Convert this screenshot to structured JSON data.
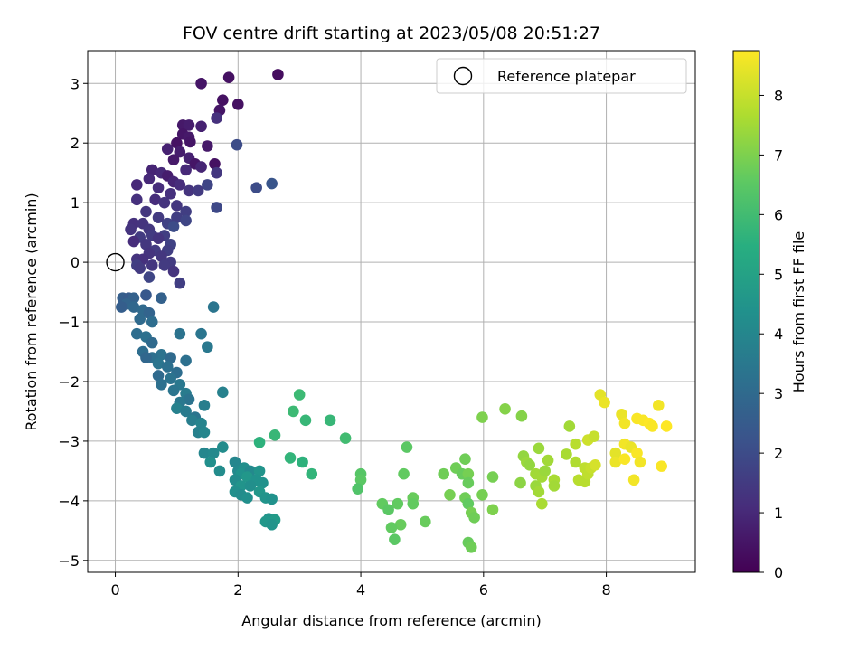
{
  "chart_data": {
    "type": "scatter",
    "title": "FOV centre drift starting at 2023/05/08 20:51:27",
    "xlabel": "Angular distance from reference (arcmin)",
    "ylabel": "Rotation from reference (arcmin)",
    "xlim": [
      -0.45,
      9.45
    ],
    "ylim": [
      -5.2,
      3.55
    ],
    "x_ticks": [
      0,
      2,
      4,
      6,
      8
    ],
    "y_ticks": [
      -5,
      -4,
      -3,
      -2,
      -1,
      0,
      1,
      2,
      3
    ],
    "grid": true,
    "legend": {
      "placement": "top-right",
      "entries": [
        "Reference platepar"
      ]
    },
    "reference_point": {
      "x": 0,
      "y": 0,
      "label": "Reference platepar"
    },
    "colormap": "viridis",
    "colorbar": {
      "label": "Hours from first FF file",
      "range": [
        0,
        8.75
      ],
      "ticks": [
        0,
        1,
        2,
        3,
        4,
        5,
        6,
        7,
        8
      ]
    },
    "series": [
      {
        "points": [
          [
            2.65,
            3.15,
            0.3
          ],
          [
            1.85,
            3.1,
            0.4
          ],
          [
            1.4,
            3.0,
            0.5
          ],
          [
            1.75,
            2.72,
            0.4
          ],
          [
            2.0,
            2.65,
            0.4
          ],
          [
            1.7,
            2.55,
            0.5
          ],
          [
            1.65,
            2.42,
            1.2
          ],
          [
            1.1,
            2.3,
            0.6
          ],
          [
            1.2,
            2.3,
            0.7
          ],
          [
            1.4,
            2.28,
            0.8
          ],
          [
            1.1,
            2.15,
            0.5
          ],
          [
            1.2,
            2.1,
            0.6
          ],
          [
            1.0,
            2.0,
            0.4
          ],
          [
            1.22,
            2.02,
            0.5
          ],
          [
            1.98,
            1.97,
            2.0
          ],
          [
            1.5,
            1.95,
            0.6
          ],
          [
            0.85,
            1.9,
            0.8
          ],
          [
            1.05,
            1.85,
            0.7
          ],
          [
            1.2,
            1.75,
            0.8
          ],
          [
            0.95,
            1.72,
            0.6
          ],
          [
            1.3,
            1.65,
            0.5
          ],
          [
            1.4,
            1.6,
            0.9
          ],
          [
            1.62,
            1.65,
            0.4
          ],
          [
            1.15,
            1.55,
            1.0
          ],
          [
            0.6,
            1.55,
            0.9
          ],
          [
            0.75,
            1.5,
            1.0
          ],
          [
            1.65,
            1.5,
            1.4
          ],
          [
            0.85,
            1.45,
            0.7
          ],
          [
            0.55,
            1.4,
            1.0
          ],
          [
            0.95,
            1.35,
            0.9
          ],
          [
            1.05,
            1.3,
            1.1
          ],
          [
            0.35,
            1.3,
            1.0
          ],
          [
            0.7,
            1.25,
            1.1
          ],
          [
            1.5,
            1.3,
            1.8
          ],
          [
            2.3,
            1.25,
            2.0
          ],
          [
            2.55,
            1.32,
            2.3
          ],
          [
            1.2,
            1.2,
            1.3
          ],
          [
            1.35,
            1.2,
            1.5
          ],
          [
            0.9,
            1.15,
            1.2
          ],
          [
            0.65,
            1.05,
            1.1
          ],
          [
            0.8,
            1.0,
            1.3
          ],
          [
            0.35,
            1.05,
            1.2
          ],
          [
            1.0,
            0.95,
            1.4
          ],
          [
            1.65,
            0.92,
            1.9
          ],
          [
            0.5,
            0.85,
            1.4
          ],
          [
            1.15,
            0.85,
            1.6
          ],
          [
            0.7,
            0.75,
            1.5
          ],
          [
            1.0,
            0.75,
            1.6
          ],
          [
            1.15,
            0.7,
            1.8
          ],
          [
            0.3,
            0.65,
            1.2
          ],
          [
            0.45,
            0.65,
            1.3
          ],
          [
            0.85,
            0.65,
            1.7
          ],
          [
            0.95,
            0.6,
            2.0
          ],
          [
            0.25,
            0.55,
            1.3
          ],
          [
            0.55,
            0.55,
            1.4
          ],
          [
            0.6,
            0.45,
            1.5
          ],
          [
            0.8,
            0.45,
            1.6
          ],
          [
            0.7,
            0.4,
            1.3
          ],
          [
            0.4,
            0.42,
            1.5
          ],
          [
            0.3,
            0.35,
            1.1
          ],
          [
            0.5,
            0.3,
            1.4
          ],
          [
            0.9,
            0.3,
            1.7
          ],
          [
            0.65,
            0.2,
            1.5
          ],
          [
            0.85,
            0.2,
            1.6
          ],
          [
            0.55,
            0.15,
            1.3
          ],
          [
            0.75,
            0.1,
            1.4
          ],
          [
            0.35,
            0.05,
            1.3
          ],
          [
            0.45,
            0.05,
            1.2
          ],
          [
            0.9,
            0.0,
            1.5
          ],
          [
            0.35,
            -0.05,
            1.6
          ],
          [
            0.6,
            -0.05,
            1.4
          ],
          [
            0.4,
            -0.1,
            1.5
          ],
          [
            0.8,
            -0.05,
            1.5
          ],
          [
            0.95,
            -0.15,
            1.3
          ],
          [
            0.55,
            -0.25,
            1.8
          ],
          [
            1.05,
            -0.35,
            1.6
          ],
          [
            0.12,
            -0.6,
            2.6
          ],
          [
            0.22,
            -0.6,
            2.5
          ],
          [
            0.3,
            -0.6,
            2.7
          ],
          [
            0.18,
            -0.7,
            2.8
          ],
          [
            0.1,
            -0.75,
            2.6
          ],
          [
            0.5,
            -0.55,
            2.4
          ],
          [
            0.75,
            -0.6,
            2.7
          ],
          [
            0.3,
            -0.75,
            2.9
          ],
          [
            0.45,
            -0.8,
            3.0
          ],
          [
            0.55,
            -0.85,
            2.8
          ],
          [
            1.6,
            -0.75,
            3.4
          ],
          [
            0.4,
            -0.95,
            3.0
          ],
          [
            0.6,
            -1.0,
            3.1
          ],
          [
            0.35,
            -1.2,
            3.1
          ],
          [
            0.5,
            -1.25,
            3.2
          ],
          [
            1.05,
            -1.2,
            3.3
          ],
          [
            1.4,
            -1.2,
            3.4
          ],
          [
            0.6,
            -1.35,
            3.0
          ],
          [
            1.5,
            -1.42,
            3.5
          ],
          [
            0.45,
            -1.5,
            3.1
          ],
          [
            0.75,
            -1.55,
            3.3
          ],
          [
            0.6,
            -1.6,
            3.2
          ],
          [
            0.9,
            -1.6,
            3.0
          ],
          [
            0.5,
            -1.6,
            2.9
          ],
          [
            1.15,
            -1.65,
            3.2
          ],
          [
            0.7,
            -1.7,
            3.4
          ],
          [
            0.85,
            -1.75,
            3.2
          ],
          [
            0.7,
            -1.9,
            3.0
          ],
          [
            1.0,
            -1.85,
            3.1
          ],
          [
            0.9,
            -1.95,
            3.3
          ],
          [
            0.75,
            -2.05,
            3.2
          ],
          [
            1.05,
            -2.05,
            3.5
          ],
          [
            0.95,
            -2.15,
            3.4
          ],
          [
            1.15,
            -2.2,
            3.6
          ],
          [
            1.75,
            -2.18,
            3.8
          ],
          [
            1.2,
            -2.3,
            3.3
          ],
          [
            1.05,
            -2.35,
            3.5
          ],
          [
            1.45,
            -2.4,
            3.7
          ],
          [
            1.0,
            -2.45,
            3.8
          ],
          [
            1.15,
            -2.5,
            3.6
          ],
          [
            1.3,
            -2.6,
            3.4
          ],
          [
            1.25,
            -2.65,
            3.7
          ],
          [
            1.4,
            -2.7,
            3.9
          ],
          [
            1.35,
            -2.85,
            3.8
          ],
          [
            1.45,
            -2.85,
            4.0
          ],
          [
            1.75,
            -3.1,
            4.2
          ],
          [
            1.45,
            -3.2,
            4.0
          ],
          [
            1.6,
            -3.2,
            4.1
          ],
          [
            1.55,
            -3.35,
            4.3
          ],
          [
            1.7,
            -3.5,
            4.2
          ],
          [
            1.95,
            -3.35,
            4.0
          ],
          [
            2.0,
            -3.5,
            4.1
          ],
          [
            2.1,
            -3.45,
            4.3
          ],
          [
            2.05,
            -3.55,
            4.4
          ],
          [
            2.2,
            -3.5,
            4.1
          ],
          [
            2.35,
            -3.5,
            4.5
          ],
          [
            1.95,
            -3.65,
            4.2
          ],
          [
            2.15,
            -3.6,
            4.6
          ],
          [
            2.3,
            -3.65,
            4.4
          ],
          [
            2.05,
            -3.75,
            4.5
          ],
          [
            2.2,
            -3.75,
            4.3
          ],
          [
            2.4,
            -3.7,
            4.4
          ],
          [
            1.95,
            -3.85,
            4.3
          ],
          [
            2.05,
            -3.9,
            4.2
          ],
          [
            2.15,
            -3.95,
            4.3
          ],
          [
            2.35,
            -3.85,
            4.6
          ],
          [
            2.45,
            -3.95,
            4.5
          ],
          [
            2.55,
            -3.97,
            4.4
          ],
          [
            2.5,
            -4.3,
            4.5
          ],
          [
            2.6,
            -4.32,
            4.7
          ],
          [
            2.45,
            -4.35,
            4.6
          ],
          [
            2.55,
            -4.4,
            4.5
          ],
          [
            2.35,
            -3.02,
            5.6
          ],
          [
            2.6,
            -2.9,
            5.8
          ],
          [
            2.85,
            -3.28,
            5.7
          ],
          [
            2.9,
            -2.5,
            5.9
          ],
          [
            3.0,
            -2.22,
            5.9
          ],
          [
            3.1,
            -2.65,
            5.8
          ],
          [
            3.05,
            -3.35,
            5.6
          ],
          [
            3.2,
            -3.55,
            5.7
          ],
          [
            3.5,
            -2.65,
            5.8
          ],
          [
            3.75,
            -2.95,
            6.0
          ],
          [
            4.0,
            -3.55,
            6.4
          ],
          [
            4.0,
            -3.65,
            6.5
          ],
          [
            3.95,
            -3.8,
            6.3
          ],
          [
            4.35,
            -4.05,
            6.6
          ],
          [
            4.45,
            -4.15,
            6.5
          ],
          [
            4.6,
            -4.05,
            6.6
          ],
          [
            4.65,
            -4.4,
            6.7
          ],
          [
            4.5,
            -4.45,
            6.6
          ],
          [
            4.55,
            -4.65,
            6.5
          ],
          [
            4.7,
            -3.55,
            6.6
          ],
          [
            4.75,
            -3.1,
            6.5
          ],
          [
            4.85,
            -3.95,
            6.7
          ],
          [
            4.85,
            -4.05,
            6.6
          ],
          [
            5.05,
            -4.35,
            6.7
          ],
          [
            5.35,
            -3.55,
            6.8
          ],
          [
            5.45,
            -3.9,
            6.9
          ],
          [
            5.55,
            -3.45,
            6.8
          ],
          [
            5.65,
            -3.55,
            6.7
          ],
          [
            5.7,
            -3.3,
            6.8
          ],
          [
            5.75,
            -3.55,
            6.9
          ],
          [
            5.75,
            -3.7,
            6.7
          ],
          [
            5.7,
            -3.95,
            6.8
          ],
          [
            5.75,
            -4.05,
            6.6
          ],
          [
            5.8,
            -4.2,
            6.9
          ],
          [
            5.85,
            -4.28,
            6.8
          ],
          [
            5.75,
            -4.7,
            6.7
          ],
          [
            5.8,
            -4.78,
            6.8
          ],
          [
            5.98,
            -3.9,
            6.9
          ],
          [
            6.15,
            -3.6,
            6.9
          ],
          [
            6.15,
            -4.15,
            7.0
          ],
          [
            5.98,
            -2.6,
            7.0
          ],
          [
            6.35,
            -2.46,
            7.1
          ],
          [
            6.62,
            -2.58,
            7.1
          ],
          [
            6.6,
            -3.7,
            7.2
          ],
          [
            6.65,
            -3.25,
            7.3
          ],
          [
            6.7,
            -3.35,
            7.4
          ],
          [
            6.75,
            -3.4,
            7.3
          ],
          [
            6.9,
            -3.12,
            7.4
          ],
          [
            6.85,
            -3.55,
            7.5
          ],
          [
            6.85,
            -3.75,
            7.4
          ],
          [
            6.95,
            -3.6,
            7.5
          ],
          [
            6.9,
            -3.85,
            7.5
          ],
          [
            6.95,
            -4.05,
            7.6
          ],
          [
            7.0,
            -3.5,
            7.4
          ],
          [
            7.05,
            -3.32,
            7.5
          ],
          [
            7.15,
            -3.65,
            7.6
          ],
          [
            7.15,
            -3.75,
            7.5
          ],
          [
            7.35,
            -3.22,
            7.6
          ],
          [
            7.4,
            -2.75,
            7.5
          ],
          [
            7.5,
            -3.05,
            7.8
          ],
          [
            7.5,
            -3.35,
            7.7
          ],
          [
            7.55,
            -3.65,
            7.8
          ],
          [
            7.65,
            -3.45,
            7.9
          ],
          [
            7.65,
            -3.68,
            7.8
          ],
          [
            7.7,
            -3.55,
            7.9
          ],
          [
            7.75,
            -3.45,
            8.0
          ],
          [
            7.7,
            -2.98,
            8.1
          ],
          [
            7.8,
            -2.92,
            8.0
          ],
          [
            7.82,
            -3.4,
            8.2
          ],
          [
            7.9,
            -2.22,
            8.4
          ],
          [
            7.97,
            -2.35,
            8.5
          ],
          [
            8.15,
            -3.2,
            8.4
          ],
          [
            8.15,
            -3.35,
            8.5
          ],
          [
            8.25,
            -2.55,
            8.5
          ],
          [
            8.3,
            -2.7,
            8.6
          ],
          [
            8.3,
            -3.05,
            8.6
          ],
          [
            8.3,
            -3.3,
            8.7
          ],
          [
            8.4,
            -3.1,
            8.5
          ],
          [
            8.45,
            -3.65,
            8.6
          ],
          [
            8.5,
            -2.62,
            8.7
          ],
          [
            8.5,
            -3.2,
            8.7
          ],
          [
            8.55,
            -3.35,
            8.6
          ],
          [
            8.6,
            -2.65,
            8.7
          ],
          [
            8.7,
            -2.7,
            8.8
          ],
          [
            8.75,
            -2.75,
            8.7
          ],
          [
            8.85,
            -2.4,
            8.6
          ],
          [
            8.9,
            -3.42,
            8.7
          ],
          [
            8.98,
            -2.75,
            8.8
          ]
        ]
      }
    ]
  }
}
